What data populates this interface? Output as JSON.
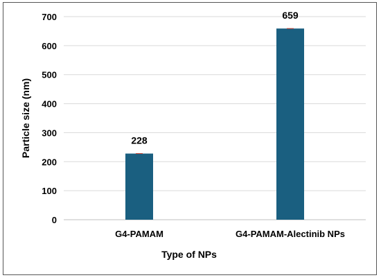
{
  "chart_data": {
    "type": "bar",
    "categories": [
      "G4-PAMAM",
      "G4-PAMAM-Alectinib NPs"
    ],
    "values": [
      228,
      659
    ],
    "data_labels": [
      "228",
      "659"
    ],
    "xlabel": "Type of NPs",
    "ylabel": "Particle size (nm)",
    "ylim": [
      0,
      700
    ],
    "yticks": [
      0,
      100,
      200,
      300,
      400,
      500,
      600,
      700
    ],
    "grid": true,
    "bar_color": "#1a5f80",
    "error_bar_color": "#c0392b"
  }
}
